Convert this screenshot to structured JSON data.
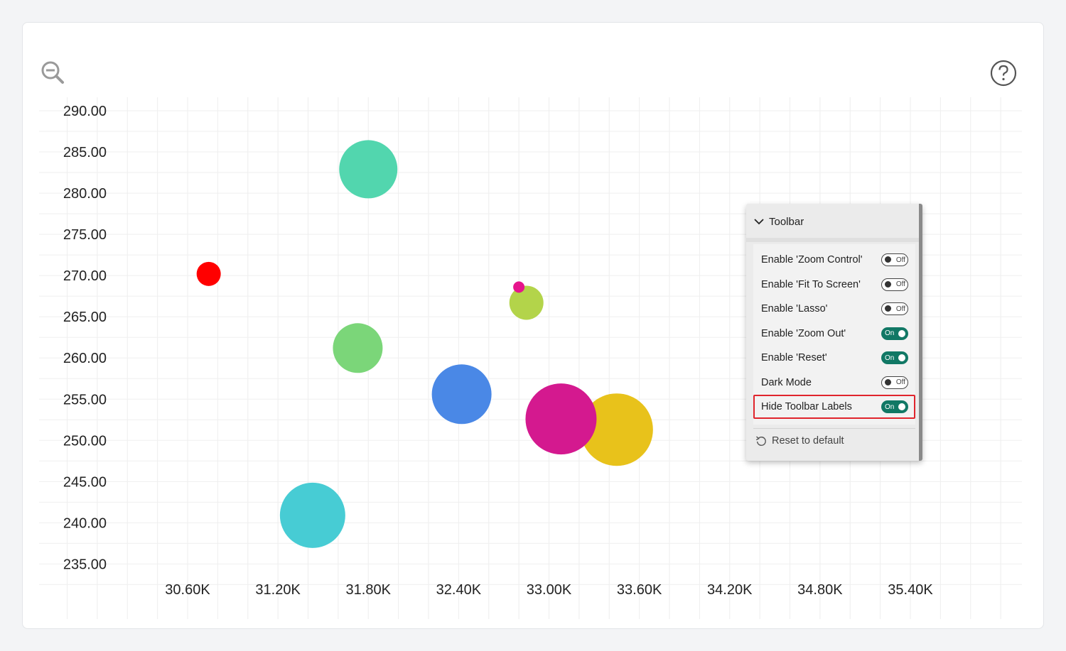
{
  "chart_data": {
    "type": "scatter",
    "xlim": [
      30200,
      36200
    ],
    "ylim": [
      232.5,
      291.5
    ],
    "x_ticks": [
      "30.60K",
      "31.20K",
      "31.80K",
      "32.40K",
      "33.00K",
      "33.60K",
      "34.20K",
      "34.80K",
      "35.40K"
    ],
    "x_tick_values": [
      30600,
      31200,
      31800,
      32400,
      33000,
      33600,
      34200,
      34800,
      35400
    ],
    "y_ticks": [
      "290.00",
      "285.00",
      "280.00",
      "275.00",
      "270.00",
      "265.00",
      "260.00",
      "255.00",
      "250.00",
      "245.00",
      "240.00",
      "235.00"
    ],
    "y_tick_values": [
      290,
      285,
      280,
      275,
      270,
      265,
      260,
      255,
      250,
      245,
      240,
      235
    ],
    "grid": true,
    "points": [
      {
        "x": 31800,
        "y": 282.9,
        "size": 41,
        "color": "#52d6ae"
      },
      {
        "x": 30740,
        "y": 270.2,
        "size": 17,
        "color": "#ff0000"
      },
      {
        "x": 32850,
        "y": 266.7,
        "size": 24,
        "color": "#b3d44a"
      },
      {
        "x": 32800,
        "y": 268.6,
        "size": 8,
        "color": "#e6158c"
      },
      {
        "x": 31730,
        "y": 261.2,
        "size": 35,
        "color": "#7bd679"
      },
      {
        "x": 32420,
        "y": 255.6,
        "size": 42,
        "color": "#4a88e6"
      },
      {
        "x": 33450,
        "y": 251.3,
        "size": 51,
        "color": "#e8c21b"
      },
      {
        "x": 33080,
        "y": 252.6,
        "size": 50,
        "color": "#d4198f"
      },
      {
        "x": 31430,
        "y": 240.9,
        "size": 46,
        "color": "#47ccd4"
      }
    ]
  },
  "icons": {
    "zoom_out": "zoom-out-icon",
    "help": "help-icon",
    "chevron": "chevron-down-icon",
    "reset": "reset-icon"
  },
  "toolbar_panel": {
    "title": "Toolbar",
    "options": [
      {
        "label": "Enable 'Zoom Control'",
        "state": "Off",
        "on": false
      },
      {
        "label": "Enable 'Fit To Screen'",
        "state": "Off",
        "on": false
      },
      {
        "label": "Enable 'Lasso'",
        "state": "Off",
        "on": false
      },
      {
        "label": "Enable 'Zoom Out'",
        "state": "On",
        "on": true
      },
      {
        "label": "Enable 'Reset'",
        "state": "On",
        "on": true
      },
      {
        "label": "Dark Mode",
        "state": "Off",
        "on": false
      },
      {
        "label": "Hide Toolbar Labels",
        "state": "On",
        "on": true
      }
    ],
    "reset_label": "Reset to default"
  },
  "colors": {
    "toggle_on": "#117865",
    "highlight_border": "#e0242c"
  }
}
